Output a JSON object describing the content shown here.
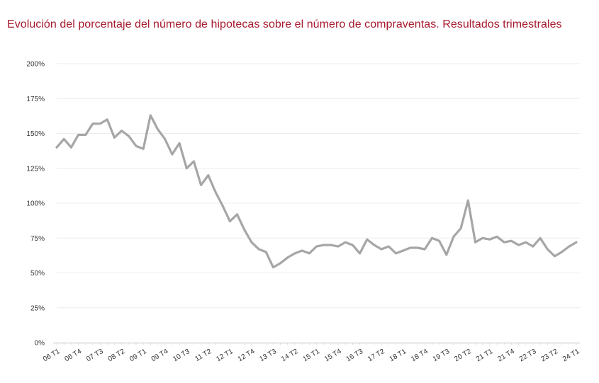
{
  "chart_data": {
    "type": "line",
    "title": "Evolución del porcentaje del número de hipotecas sobre el número de compraventas. Resultados trimestrales",
    "xlabel": "",
    "ylabel": "",
    "ylim": [
      0,
      200
    ],
    "y_ticks": [
      "0%",
      "25%",
      "50%",
      "75%",
      "100%",
      "125%",
      "150%",
      "175%",
      "200%"
    ],
    "grid": true,
    "legend": "none",
    "line_color": "#a6a6a6",
    "grid_color": "#ececec",
    "x_tick_labels": [
      "06 T1",
      "06 T4",
      "07 T3",
      "08 T2",
      "09 T1",
      "09 T4",
      "10 T3",
      "11 T2",
      "12 T1",
      "12 T4",
      "13 T3",
      "14 T2",
      "15 T1",
      "15 T4",
      "16 T3",
      "17 T2",
      "18 T1",
      "18 T4",
      "19 T3",
      "20 T2",
      "21 T1",
      "21 T4",
      "22 T3",
      "23 T2",
      "24 T1"
    ],
    "x": [
      "06 T1",
      "06 T2",
      "06 T3",
      "06 T4",
      "07 T1",
      "07 T2",
      "07 T3",
      "07 T4",
      "08 T1",
      "08 T2",
      "08 T3",
      "08 T4",
      "09 T1",
      "09 T2",
      "09 T3",
      "09 T4",
      "10 T1",
      "10 T2",
      "10 T3",
      "10 T4",
      "11 T1",
      "11 T2",
      "11 T3",
      "11 T4",
      "12 T1",
      "12 T2",
      "12 T3",
      "12 T4",
      "13 T1",
      "13 T2",
      "13 T3",
      "13 T4",
      "14 T1",
      "14 T2",
      "14 T3",
      "14 T4",
      "15 T1",
      "15 T2",
      "15 T3",
      "15 T4",
      "16 T1",
      "16 T2",
      "16 T3",
      "16 T4",
      "17 T1",
      "17 T2",
      "17 T3",
      "17 T4",
      "18 T1",
      "18 T2",
      "18 T3",
      "18 T4",
      "19 T1",
      "19 T2",
      "19 T3",
      "19 T4",
      "20 T1",
      "20 T2",
      "20 T3",
      "20 T4",
      "21 T1",
      "21 T2",
      "21 T3",
      "21 T4",
      "22 T1",
      "22 T2",
      "22 T3",
      "22 T4",
      "23 T1",
      "23 T2",
      "23 T3",
      "23 T4",
      "24 T1"
    ],
    "series": [
      {
        "values": [
          140,
          146,
          140,
          149,
          149,
          157,
          157,
          160,
          147,
          152,
          148,
          141,
          139,
          163,
          153,
          146,
          135,
          143,
          125,
          130,
          113,
          120,
          108,
          98,
          87,
          92,
          81,
          72,
          67,
          65,
          54,
          57,
          61,
          64,
          66,
          64,
          69,
          70,
          70,
          69,
          72,
          70,
          64,
          74,
          70,
          67,
          69,
          64,
          66,
          68,
          68,
          67,
          75,
          73,
          63,
          76,
          82,
          102,
          72,
          75,
          74,
          76,
          72,
          73,
          70,
          72,
          69,
          75,
          67,
          62,
          65,
          69,
          72
        ]
      }
    ]
  }
}
